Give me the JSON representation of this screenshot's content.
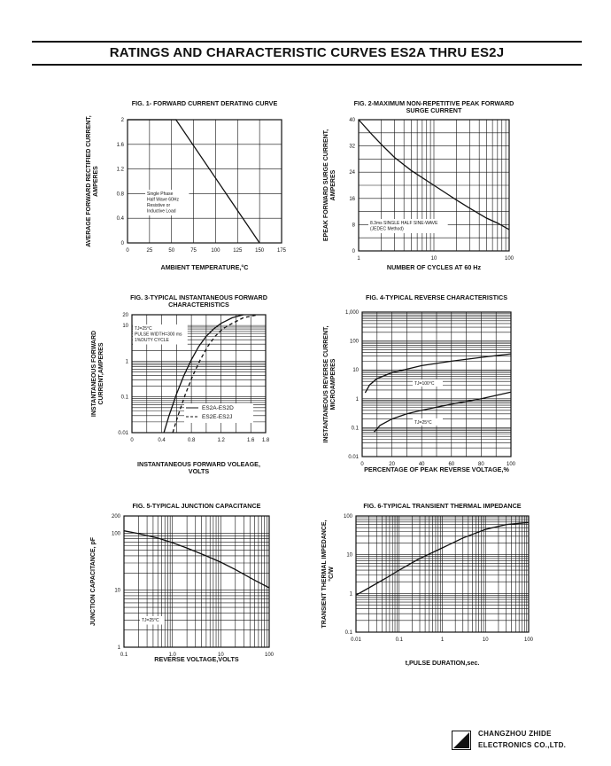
{
  "page": {
    "title": "RATINGS AND CHARACTERISTIC CURVES ES2A THRU ES2J",
    "company_line1": "CHANGZHOU ZHIDE",
    "company_line2": "ELECTRONICS CO.,LTD."
  },
  "chart_data": [
    {
      "type": "line",
      "title": "FIG. 1- FORWARD CURRENT DERATING CURVE",
      "xlabel": "AMBIENT TEMPERATURE,°C",
      "ylabel_lines": [
        "AVERAGE FORWARD RECTIFIED CURRENT,",
        "AMPERES"
      ],
      "xscale": "linear",
      "yscale": "linear",
      "xlim": [
        0,
        175
      ],
      "ylim": [
        0,
        2.0
      ],
      "xticks": [
        0,
        25,
        50,
        75,
        100,
        125,
        150,
        175
      ],
      "xtick_labels": [
        "0",
        "25",
        "50",
        "75",
        "100",
        "125",
        "150",
        "175"
      ],
      "yticks": [
        0,
        0.4,
        0.8,
        1.2,
        1.6,
        2.0
      ],
      "ytick_labels": [
        "0",
        "0.4",
        "0.8",
        "1.2",
        "1.6",
        "2"
      ],
      "grid": "major",
      "annotation": [
        "Single Phase",
        "Half Wave 60Hz",
        "Resistive or",
        "Inductive Load"
      ],
      "series": [
        {
          "x": [
            0,
            55,
            150
          ],
          "y": [
            2.0,
            2.0,
            0
          ],
          "dash": false
        }
      ]
    },
    {
      "type": "line",
      "title_lines": [
        "FIG. 2-MAXIMUM NON-REPETITIVE PEAK FORWARD",
        "SURGE CURRENT"
      ],
      "xlabel": "NUMBER OF CYCLES AT 60 Hz",
      "ylabel_lines": [
        "EPEAK FORWARD SURGE CURRENT,",
        "AMPERES"
      ],
      "xscale": "log",
      "yscale": "linear",
      "xlim": [
        1,
        100
      ],
      "ylim": [
        0,
        40
      ],
      "xticks": [
        1,
        10,
        100
      ],
      "xtick_labels": [
        "1",
        "10",
        "100"
      ],
      "yticks": [
        0,
        8,
        16,
        24,
        32,
        40
      ],
      "ytick_labels": [
        "0",
        "8",
        "16",
        "24",
        "32",
        "40"
      ],
      "grid": "log-minor",
      "annotation": [
        "8.3ms SINGLE HALF SINE-WAVE",
        "(JEDEC Method)"
      ],
      "series": [
        {
          "x": [
            1,
            1.5,
            2,
            3,
            5,
            10,
            20,
            30,
            50,
            70,
            100
          ],
          "y": [
            40,
            35.5,
            32.5,
            28.5,
            24.5,
            20,
            15.5,
            13,
            10,
            8.5,
            6.5
          ],
          "dash": false
        }
      ]
    },
    {
      "type": "line",
      "title_lines": [
        "FIG. 3-TYPICAL INSTANTANEOUS FORWARD",
        "CHARACTERISTICS"
      ],
      "xlabel_lines": [
        "INSTANTANEOUS FORWARD VOLEAGE,",
        "VOLTS"
      ],
      "ylabel_lines": [
        "INSTANTANEOUS FORWARD",
        "CURRENT,AMPERES"
      ],
      "xscale": "linear",
      "yscale": "log",
      "xlim": [
        0,
        1.8
      ],
      "ylim": [
        0.01,
        20
      ],
      "xticks": [
        0,
        0.4,
        0.8,
        1.2,
        1.6,
        1.8
      ],
      "xtick_labels": [
        "0",
        "0.4",
        "0.8",
        "1.2",
        "1.6",
        "1.8"
      ],
      "yticks": [
        0.01,
        0.1,
        1,
        10,
        20
      ],
      "ytick_labels": [
        "0.01",
        "0.1",
        "1",
        "10",
        "20"
      ],
      "grid": "log-minor",
      "annotation": [
        "TJ=25°C",
        "PULSE WIDTH=300 ms",
        "1%DUTY CYCLE"
      ],
      "legend_position": "bottom-right",
      "series": [
        {
          "name": "ES2A-ES2D",
          "x": [
            0.43,
            0.5,
            0.6,
            0.7,
            0.8,
            0.9,
            1.0,
            1.1,
            1.2,
            1.35,
            1.5
          ],
          "y": [
            0.01,
            0.03,
            0.12,
            0.4,
            1.1,
            2.6,
            5.0,
            8.0,
            11.5,
            16.5,
            20
          ],
          "dash": false
        },
        {
          "name": "ES2E-ES2J",
          "x": [
            0.55,
            0.62,
            0.72,
            0.82,
            0.92,
            1.02,
            1.12,
            1.22,
            1.35,
            1.5,
            1.7
          ],
          "y": [
            0.01,
            0.03,
            0.12,
            0.4,
            1.1,
            2.6,
            5.0,
            8.0,
            11.5,
            16.5,
            20
          ],
          "dash": true
        }
      ]
    },
    {
      "type": "line",
      "title": "FIG. 4-TYPICAL REVERSE CHARACTERISTICS",
      "xlabel": "PERCENTAGE OF PEAK REVERSE VOLTAGE,%",
      "ylabel_lines": [
        "INSTANTANEOUS REVERSE CURRENT,",
        "MICROAMPERES"
      ],
      "xscale": "linear",
      "yscale": "log",
      "xlim": [
        0,
        100
      ],
      "ylim": [
        0.01,
        1000
      ],
      "xticks": [
        0,
        20,
        40,
        60,
        80,
        100
      ],
      "xtick_labels": [
        "0",
        "20",
        "40",
        "60",
        "80",
        "100"
      ],
      "yticks": [
        0.01,
        0.1,
        1,
        10,
        100,
        1000
      ],
      "ytick_labels": [
        "0.01",
        "0.1",
        "1",
        "10",
        "100",
        "1,000"
      ],
      "grid": "log-minor",
      "series": [
        {
          "name": "TJ=100°C",
          "x": [
            2,
            5,
            10,
            20,
            40,
            60,
            80,
            100
          ],
          "y": [
            1.6,
            3.0,
            5.0,
            8.0,
            14,
            20,
            27,
            36
          ],
          "dash": false
        },
        {
          "name": "TJ=25°C",
          "x": [
            8,
            12,
            20,
            30,
            40,
            60,
            80,
            100
          ],
          "y": [
            0.07,
            0.12,
            0.2,
            0.3,
            0.4,
            0.65,
            1.0,
            1.7
          ],
          "dash": false
        }
      ]
    },
    {
      "type": "line",
      "title": "FIG. 5-TYPICAL JUNCTION CAPACITANCE",
      "xlabel": "REVERSE VOLTAGE,VOLTS",
      "ylabel": "JUNCTION CAPACITANCE, pF",
      "xscale": "log",
      "yscale": "log",
      "xlim": [
        0.1,
        100
      ],
      "ylim": [
        1,
        200
      ],
      "xticks": [
        0.1,
        1,
        10,
        100
      ],
      "xtick_labels": [
        "0.1",
        "1.0",
        "10",
        "100"
      ],
      "yticks": [
        1,
        10,
        100,
        200
      ],
      "ytick_labels": [
        "1",
        "10",
        "100",
        "200"
      ],
      "grid": "log-minor",
      "annotation": [
        "TJ=25°C"
      ],
      "series": [
        {
          "x": [
            0.1,
            0.2,
            0.5,
            1,
            2,
            5,
            10,
            20,
            50,
            100
          ],
          "y": [
            110,
            98,
            82,
            68,
            55,
            40,
            31,
            23,
            15,
            11
          ],
          "dash": false
        }
      ]
    },
    {
      "type": "line",
      "title": "FIG. 6-TYPICAL TRANSIENT THERMAL IMPEDANCE",
      "xlabel": "t,PULSE DURATION,sec.",
      "ylabel_lines": [
        "TRANSIENT THERMAL IMPEDANCE,",
        "°C/W"
      ],
      "xscale": "log",
      "yscale": "log",
      "xlim": [
        0.01,
        100
      ],
      "ylim": [
        0.1,
        100
      ],
      "xticks": [
        0.01,
        0.1,
        1,
        10,
        100
      ],
      "xtick_labels": [
        "0.01",
        "0.1",
        "1",
        "10",
        "100"
      ],
      "yticks": [
        0.1,
        1,
        10,
        100
      ],
      "ytick_labels": [
        "0.1",
        "1",
        "10",
        "100"
      ],
      "grid": "log-minor",
      "series": [
        {
          "x": [
            0.01,
            0.02,
            0.05,
            0.1,
            0.3,
            1,
            3,
            10,
            30,
            100
          ],
          "y": [
            0.9,
            1.4,
            2.5,
            4.0,
            8.0,
            15,
            27,
            45,
            60,
            68
          ],
          "dash": false
        }
      ]
    }
  ]
}
